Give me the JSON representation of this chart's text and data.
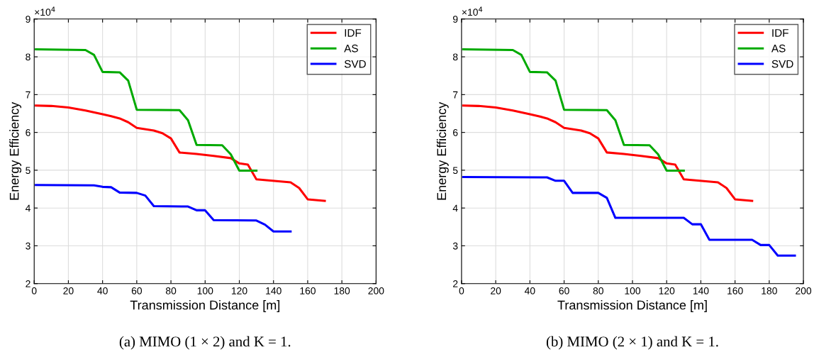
{
  "chart_data": [
    {
      "type": "line",
      "xlabel": "Transmission Distance [m]",
      "ylabel": "Energy Efficiency",
      "annotations": [
        "×10$^{4}$",
        "(a) MIMO (1 × 2) and K = 1."
      ],
      "xlim": [
        0,
        200
      ],
      "xticks": [
        0,
        20,
        40,
        60,
        80,
        100,
        120,
        140,
        160,
        180,
        200
      ],
      "ylim": [
        2,
        9
      ],
      "yticks": [
        2,
        3,
        4,
        5,
        6,
        7,
        8,
        9
      ],
      "grid": true,
      "legend": "top right",
      "line_style": "solid",
      "marker": "none",
      "series": [
        {
          "name": "IDF",
          "color": "#ff0000",
          "x": [
            1,
            10,
            20,
            30,
            40,
            45,
            50,
            55,
            60,
            70,
            75,
            80,
            85,
            95,
            105,
            115,
            120,
            125,
            130,
            150,
            155,
            160,
            170
          ],
          "values": [
            6.71,
            6.7,
            6.66,
            6.58,
            6.48,
            6.43,
            6.37,
            6.27,
            6.12,
            6.05,
            5.98,
            5.84,
            5.47,
            5.43,
            5.38,
            5.32,
            5.18,
            5.15,
            4.76,
            4.68,
            4.53,
            4.23,
            4.19
          ]
        },
        {
          "name": "AS",
          "color": "#00aa00",
          "x": [
            1,
            30,
            35,
            40,
            50,
            55,
            60,
            85,
            90,
            95,
            110,
            115,
            120,
            130
          ],
          "values": [
            8.2,
            8.18,
            8.05,
            7.6,
            7.59,
            7.37,
            6.6,
            6.59,
            6.32,
            5.67,
            5.66,
            5.42,
            4.99,
            4.99
          ]
        },
        {
          "name": "SVD",
          "color": "#0000ff",
          "x": [
            1,
            35,
            40,
            45,
            50,
            60,
            65,
            70,
            90,
            95,
            100,
            105,
            130,
            135,
            140,
            150
          ],
          "values": [
            4.61,
            4.6,
            4.56,
            4.55,
            4.41,
            4.4,
            4.33,
            4.05,
            4.04,
            3.94,
            3.94,
            3.68,
            3.67,
            3.56,
            3.38,
            3.38
          ]
        }
      ]
    },
    {
      "type": "line",
      "xlabel": "Transmission Distance [m]",
      "ylabel": "Energy Efficiency",
      "annotations": [
        "×10$^{4}$",
        "(b) MIMO (2 × 1) and K = 1."
      ],
      "xlim": [
        0,
        200
      ],
      "xticks": [
        0,
        20,
        40,
        60,
        80,
        100,
        120,
        140,
        160,
        180,
        200
      ],
      "ylim": [
        2,
        9
      ],
      "yticks": [
        2,
        3,
        4,
        5,
        6,
        7,
        8,
        9
      ],
      "grid": true,
      "legend": "top right",
      "line_style": "solid",
      "marker": "none",
      "series": [
        {
          "name": "IDF",
          "color": "#ff0000",
          "x": [
            1,
            10,
            20,
            30,
            40,
            45,
            50,
            55,
            60,
            70,
            75,
            80,
            85,
            95,
            105,
            115,
            120,
            125,
            130,
            150,
            155,
            160,
            170
          ],
          "values": [
            6.71,
            6.7,
            6.66,
            6.58,
            6.48,
            6.43,
            6.37,
            6.27,
            6.12,
            6.05,
            5.98,
            5.84,
            5.47,
            5.43,
            5.38,
            5.32,
            5.18,
            5.15,
            4.76,
            4.68,
            4.53,
            4.23,
            4.19
          ]
        },
        {
          "name": "AS",
          "color": "#00aa00",
          "x": [
            1,
            30,
            35,
            40,
            50,
            55,
            60,
            85,
            90,
            95,
            110,
            115,
            120,
            130
          ],
          "values": [
            8.2,
            8.18,
            8.05,
            7.6,
            7.59,
            7.37,
            6.6,
            6.59,
            6.32,
            5.67,
            5.66,
            5.42,
            4.99,
            4.99
          ]
        },
        {
          "name": "SVD",
          "color": "#0000ff",
          "x": [
            1,
            50,
            55,
            60,
            65,
            80,
            85,
            90,
            130,
            135,
            140,
            145,
            170,
            175,
            180,
            185,
            195
          ],
          "values": [
            4.82,
            4.81,
            4.72,
            4.72,
            4.4,
            4.4,
            4.27,
            3.74,
            3.74,
            3.57,
            3.57,
            3.16,
            3.16,
            3.02,
            3.02,
            2.74,
            2.74
          ]
        }
      ]
    }
  ]
}
